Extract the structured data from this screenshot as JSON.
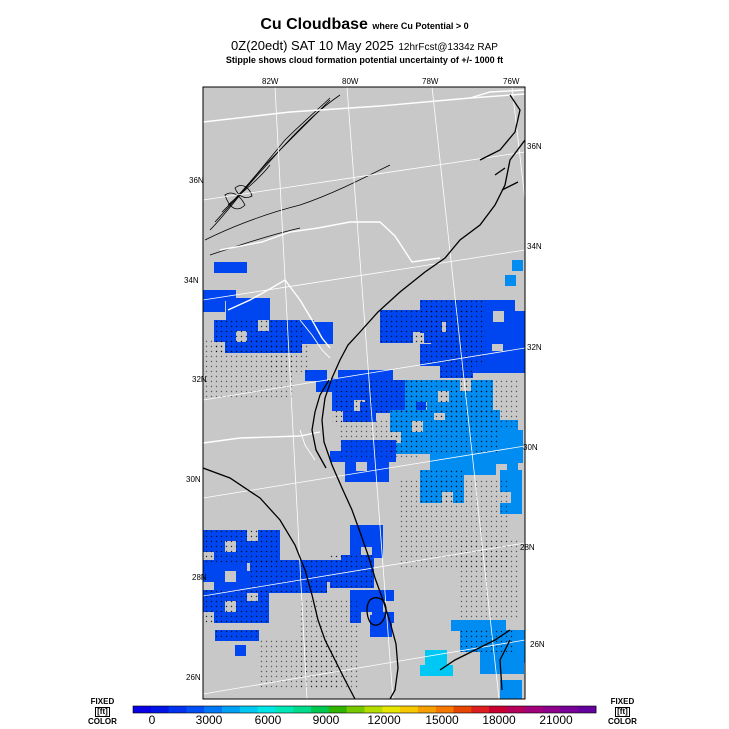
{
  "header": {
    "title": "Cu Cloudbase",
    "title_qualifier": "where Cu Potential > 0",
    "valid_time": "0Z(20edt) SAT 10 May 2025",
    "forecast_info": "12hrFcst@1334z RAP",
    "stipple_note": "Stipple shows cloud formation potential uncertainty of +/-  1000 ft"
  },
  "map": {
    "top_longitude_labels": [
      "82W",
      "80W",
      "78W",
      "76W"
    ],
    "right_latitude_labels": [
      "36N",
      "34N",
      "32N",
      "30N",
      "28N",
      "26N"
    ],
    "left_latitude_labels": [
      "36N",
      "34N",
      "32N",
      "30N",
      "28N",
      "26N"
    ],
    "land_color": "#c8c8c8",
    "coast_color": "#000000",
    "border_color": "#ffffff",
    "grid_color": "#ffffff"
  },
  "colorbar": {
    "left_label_top": "FIXED",
    "left_label_mid": "[ft]",
    "left_label_bottom": "COLOR",
    "right_label_top": "FIXED",
    "right_label_mid": "[ft]",
    "right_label_bottom": "COLOR",
    "tick_labels": [
      "0",
      "3000",
      "6000",
      "9000",
      "12000",
      "15000",
      "18000",
      "21000"
    ],
    "colors": [
      "#0a00e6",
      "#0014e6",
      "#0032f0",
      "#0050f5",
      "#0078f5",
      "#00a0f5",
      "#00c8f0",
      "#00e6e6",
      "#00e6b4",
      "#00dc8c",
      "#00c850",
      "#30b400",
      "#78c800",
      "#b4dc00",
      "#e6e600",
      "#f5c800",
      "#f5a000",
      "#f57800",
      "#e64600",
      "#dc1e1e",
      "#c80032",
      "#b4005a",
      "#a00078",
      "#8c008c",
      "#780096",
      "#64009b"
    ],
    "field_colors": {
      "deep": "#0000e6",
      "mid": "#0046f0",
      "light": "#008cf0",
      "cyan": "#00c8f5"
    }
  }
}
